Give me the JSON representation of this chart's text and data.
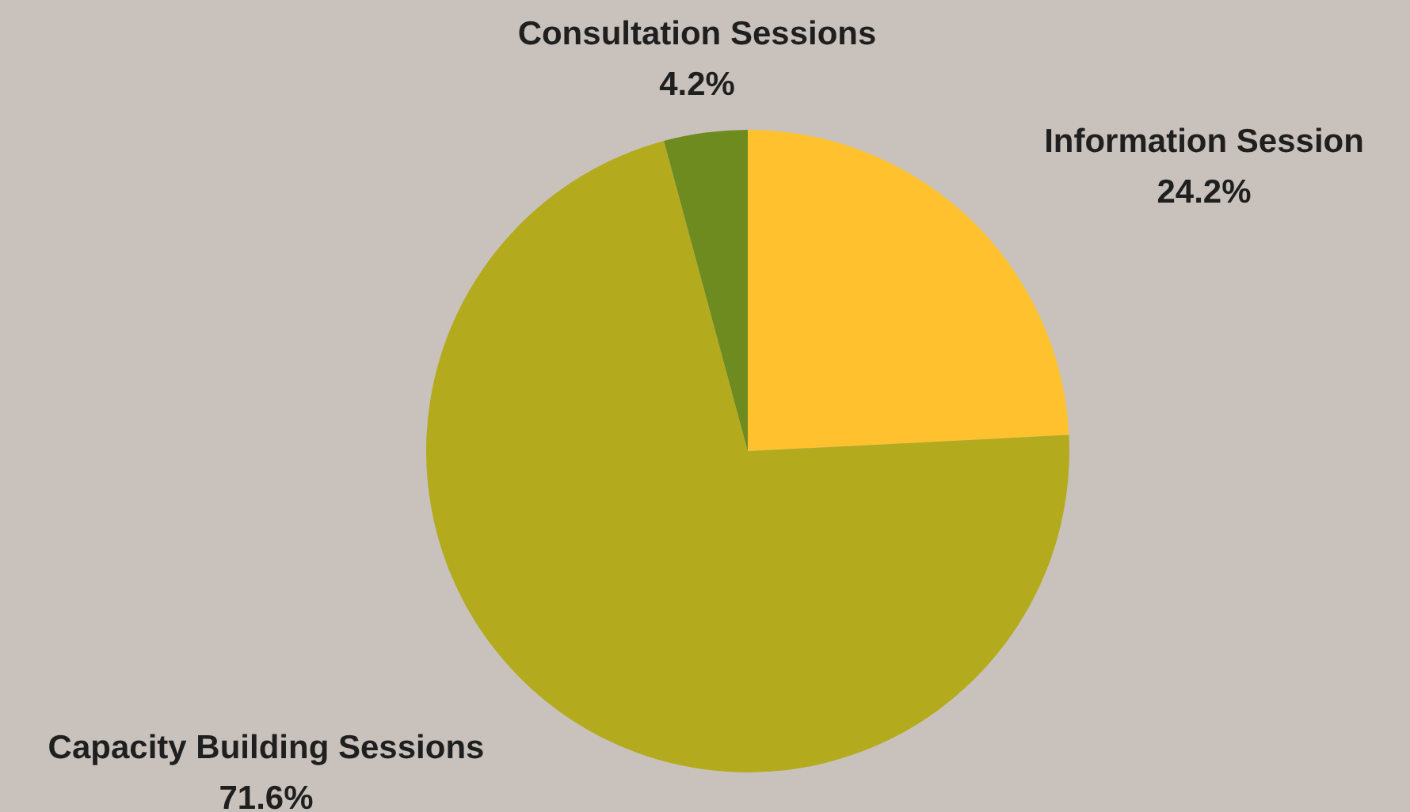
{
  "chart_data": {
    "type": "pie",
    "categories": [
      "Information Session",
      "Capacity Building Sessions",
      "Consultation Sessions"
    ],
    "values": [
      24.2,
      71.6,
      4.2
    ],
    "colors": [
      "#ffc22e",
      "#b3ab1d",
      "#6e8b1f"
    ],
    "value_labels": [
      "24.2%",
      "71.6%",
      "4.2%"
    ],
    "legend": false
  }
}
